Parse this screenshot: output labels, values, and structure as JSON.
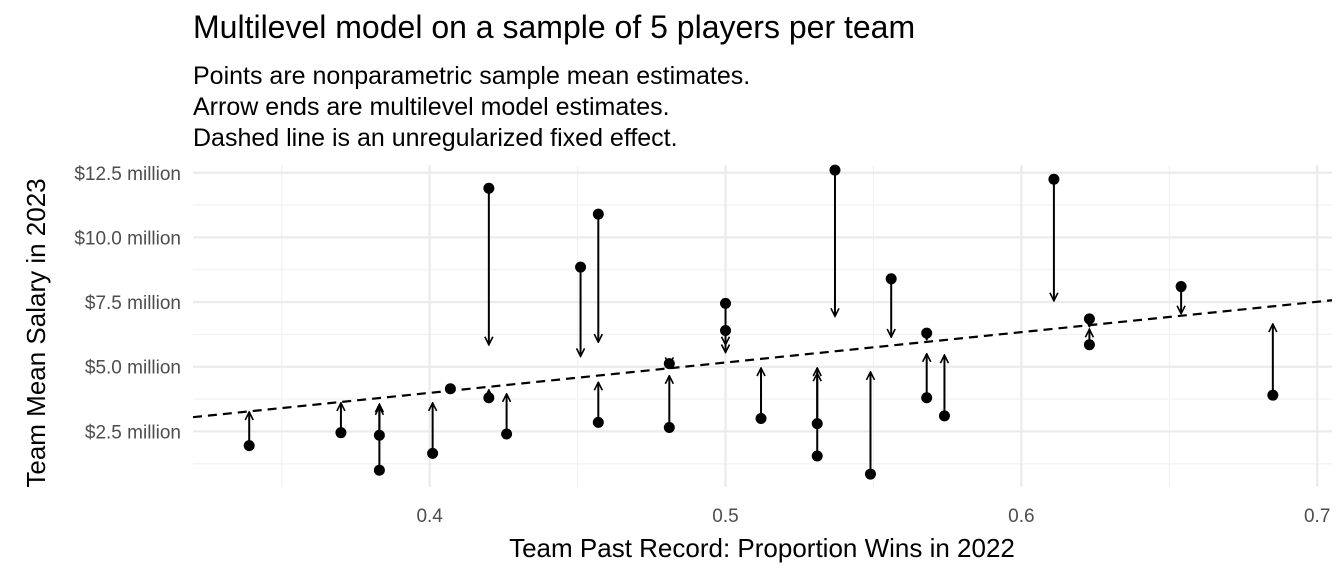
{
  "chart_data": {
    "type": "scatter",
    "title": "Multilevel model on a sample of 5 players per team",
    "subtitle": [
      "Points are nonparametric sample mean estimates.",
      "Arrow ends are multilevel model estimates.",
      "Dashed line is an unregularized fixed effect."
    ],
    "xlabel": "Team Past Record: Proportion Wins in 2022",
    "ylabel": "Team Mean Salary in 2023",
    "xlim": [
      0.32,
      0.705
    ],
    "ylim": [
      0.35,
      12.8
    ],
    "x_ticks": [
      {
        "value": 0.4,
        "label": "0.4"
      },
      {
        "value": 0.5,
        "label": "0.5"
      },
      {
        "value": 0.6,
        "label": "0.6"
      },
      {
        "value": 0.7,
        "label": "0.7"
      }
    ],
    "y_ticks": [
      {
        "value": 2.5,
        "label": "$2.5 million"
      },
      {
        "value": 5.0,
        "label": "$5.0 million"
      },
      {
        "value": 7.5,
        "label": "$7.5 million"
      },
      {
        "value": 10.0,
        "label": "$10.0 million"
      },
      {
        "value": 12.5,
        "label": "$12.5 million"
      }
    ],
    "fixed_effect_line": {
      "style": "dashed",
      "points": [
        [
          0.32,
          3.05
        ],
        [
          0.705,
          7.57
        ]
      ]
    },
    "teams": [
      {
        "x": 0.339,
        "sample_mean": 1.95,
        "multilevel": 3.25
      },
      {
        "x": 0.37,
        "sample_mean": 2.45,
        "multilevel": 3.6
      },
      {
        "x": 0.383,
        "sample_mean": 1.0,
        "multilevel": 3.55
      },
      {
        "x": 0.383,
        "sample_mean": 2.35,
        "multilevel": 3.45
      },
      {
        "x": 0.401,
        "sample_mean": 1.65,
        "multilevel": 3.6
      },
      {
        "x": 0.407,
        "sample_mean": 4.15,
        "multilevel": 4.32
      },
      {
        "x": 0.42,
        "sample_mean": 11.9,
        "multilevel": 5.85
      },
      {
        "x": 0.42,
        "sample_mean": 3.8,
        "multilevel": 4.1
      },
      {
        "x": 0.426,
        "sample_mean": 2.4,
        "multilevel": 3.95
      },
      {
        "x": 0.451,
        "sample_mean": 8.85,
        "multilevel": 5.4
      },
      {
        "x": 0.457,
        "sample_mean": 10.9,
        "multilevel": 5.95
      },
      {
        "x": 0.457,
        "sample_mean": 2.85,
        "multilevel": 4.4
      },
      {
        "x": 0.481,
        "sample_mean": 2.65,
        "multilevel": 4.65
      },
      {
        "x": 0.481,
        "sample_mean": 5.12,
        "multilevel": 5.05
      },
      {
        "x": 0.5,
        "sample_mean": 7.45,
        "multilevel": 5.85
      },
      {
        "x": 0.5,
        "sample_mean": 6.4,
        "multilevel": 5.55
      },
      {
        "x": 0.512,
        "sample_mean": 3.0,
        "multilevel": 4.95
      },
      {
        "x": 0.531,
        "sample_mean": 1.55,
        "multilevel": 4.95
      },
      {
        "x": 0.531,
        "sample_mean": 2.8,
        "multilevel": 4.75
      },
      {
        "x": 0.537,
        "sample_mean": 12.6,
        "multilevel": 6.95
      },
      {
        "x": 0.549,
        "sample_mean": 0.85,
        "multilevel": 4.8
      },
      {
        "x": 0.556,
        "sample_mean": 8.4,
        "multilevel": 6.15
      },
      {
        "x": 0.568,
        "sample_mean": 6.3,
        "multilevel": 6.05
      },
      {
        "x": 0.568,
        "sample_mean": 3.8,
        "multilevel": 5.5
      },
      {
        "x": 0.574,
        "sample_mean": 3.1,
        "multilevel": 5.45
      },
      {
        "x": 0.611,
        "sample_mean": 12.25,
        "multilevel": 7.55
      },
      {
        "x": 0.623,
        "sample_mean": 6.85,
        "multilevel": 6.55
      },
      {
        "x": 0.623,
        "sample_mean": 5.85,
        "multilevel": 6.45
      },
      {
        "x": 0.654,
        "sample_mean": 8.1,
        "multilevel": 7.05
      },
      {
        "x": 0.685,
        "sample_mean": 3.9,
        "multilevel": 6.65
      }
    ]
  }
}
